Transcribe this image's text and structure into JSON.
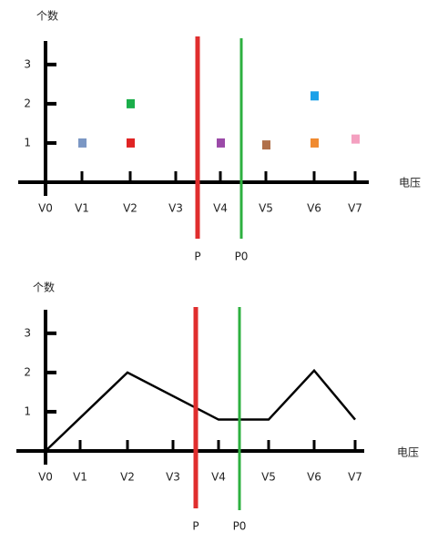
{
  "chart_data": [
    {
      "type": "scatter",
      "y_label": "个数",
      "x_label": "电压",
      "categories": [
        "V0",
        "V1",
        "V2",
        "V3",
        "V4",
        "V5",
        "V6",
        "V7"
      ],
      "ylim": [
        0,
        3.6
      ],
      "yticks": [
        1,
        2,
        3
      ],
      "points": [
        {
          "x": "V1",
          "y": 1,
          "color": "#7b97c4"
        },
        {
          "x": "V2",
          "y": 1,
          "color": "#e02424"
        },
        {
          "x": "V2",
          "y": 2,
          "color": "#1aae4a"
        },
        {
          "x": "V4",
          "y": 1,
          "color": "#9b4aa8"
        },
        {
          "x": "V5",
          "y": 0.95,
          "color": "#b0704a"
        },
        {
          "x": "V6",
          "y": 1,
          "color": "#f08a30"
        },
        {
          "x": "V6",
          "y": 2.2,
          "color": "#1aa0e8"
        },
        {
          "x": "V7",
          "y": 1.1,
          "color": "#f4a0c0"
        }
      ],
      "markers": [
        {
          "label": "P",
          "color": "#e02e2e"
        },
        {
          "label": "P0",
          "color": "#2eb040"
        }
      ]
    },
    {
      "type": "line",
      "y_label": "个数",
      "x_label": "电压",
      "categories": [
        "V0",
        "V1",
        "V2",
        "V3",
        "V4",
        "V5",
        "V6",
        "V7"
      ],
      "ylim": [
        0,
        3.6
      ],
      "yticks": [
        1,
        2,
        3
      ],
      "x": [
        "V0",
        "V2",
        "V4",
        "V5",
        "V6",
        "V7"
      ],
      "values": [
        0,
        2,
        0.8,
        0.8,
        2.05,
        0.8
      ],
      "color": "#000000",
      "markers": [
        {
          "label": "P",
          "color": "#e02e2e"
        },
        {
          "label": "P0",
          "color": "#2eb040"
        }
      ]
    }
  ]
}
